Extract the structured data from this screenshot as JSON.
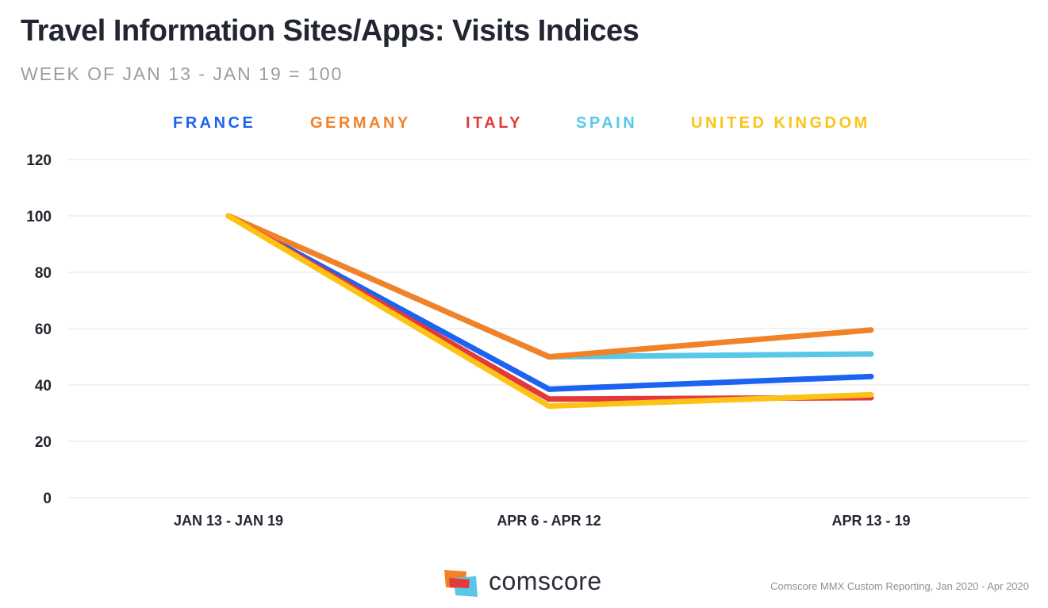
{
  "chart_data": {
    "type": "line",
    "title": "Travel Information Sites/Apps: Visits Indices",
    "subtitle": "WEEK OF JAN 13 - JAN 19 = 100",
    "categories": [
      "JAN 13 - JAN 19",
      "APR 6 - APR 12",
      "APR 13 - 19"
    ],
    "ylim": [
      0,
      120
    ],
    "yticks": [
      0,
      20,
      40,
      60,
      80,
      100,
      120
    ],
    "grid": true,
    "legend_position": "top",
    "series": [
      {
        "name": "FRANCE",
        "color": "#1b63f0",
        "values": [
          100,
          38.5,
          43
        ]
      },
      {
        "name": "GERMANY",
        "color": "#f28228",
        "values": [
          100,
          50,
          59.5
        ]
      },
      {
        "name": "ITALY",
        "color": "#e3393a",
        "values": [
          100,
          35,
          35.5
        ]
      },
      {
        "name": "SPAIN",
        "color": "#59c8e6",
        "values": [
          100,
          50,
          51
        ]
      },
      {
        "name": "UNITED KINGDOM",
        "color": "#fcc316",
        "values": [
          100,
          32.5,
          36.5
        ]
      }
    ]
  },
  "footer": {
    "brand": "comscore",
    "brand_logo_colors": [
      "#f28228",
      "#e3393a",
      "#59c8e6"
    ],
    "source": "Comscore MMX Custom Reporting, Jan 2020 - Apr 2020"
  }
}
